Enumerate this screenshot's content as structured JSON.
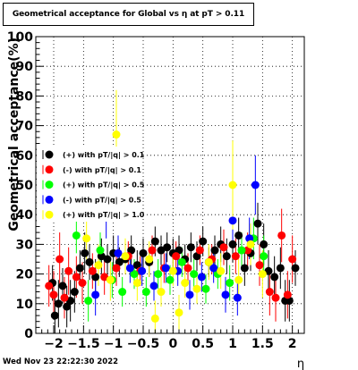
{
  "chart_data": {
    "type": "scatter",
    "title": "Geometrical acceptance for Global vs  η at pT > 0.11",
    "xlabel": "η",
    "ylabel": "Geometrical acceptance(%)",
    "xlim": [
      -2.3,
      2.2
    ],
    "ylim": [
      0,
      100
    ],
    "x_ticks": [
      -2,
      -1.5,
      -1,
      -0.5,
      0,
      0.5,
      1,
      1.5,
      2
    ],
    "x_tick_labels": [
      "−2",
      "−1.5",
      "−1",
      "−0.5",
      "0",
      "0.5",
      "1",
      "1.5",
      "2"
    ],
    "y_ticks": [
      0,
      10,
      20,
      30,
      40,
      50,
      60,
      70,
      80,
      90,
      100
    ],
    "y_tick_labels": [
      "0",
      "10",
      "20",
      "30",
      "40",
      "50",
      "60",
      "70",
      "80",
      "90",
      "100"
    ],
    "grid": true,
    "legend_position": "center-left",
    "timestamp": "Wed Nov 23 22:22:30 2022",
    "series": [
      {
        "name": "(+) with pT/|q| > 0.1",
        "color": "#000000",
        "points": [
          {
            "x": -2.02,
            "y": 17,
            "err": 6
          },
          {
            "x": -1.98,
            "y": 6,
            "err": 7
          },
          {
            "x": -1.92,
            "y": 10,
            "err": 8
          },
          {
            "x": -1.85,
            "y": 16,
            "err": 6
          },
          {
            "x": -1.78,
            "y": 9,
            "err": 7
          },
          {
            "x": -1.72,
            "y": 11,
            "err": 7
          },
          {
            "x": -1.65,
            "y": 14,
            "err": 7
          },
          {
            "x": -1.56,
            "y": 22,
            "err": 6
          },
          {
            "x": -1.48,
            "y": 27,
            "err": 7
          },
          {
            "x": -1.4,
            "y": 24,
            "err": 6
          },
          {
            "x": -1.3,
            "y": 19,
            "err": 6
          },
          {
            "x": -1.2,
            "y": 26,
            "err": 6
          },
          {
            "x": -1.1,
            "y": 25,
            "err": 5
          },
          {
            "x": -1.0,
            "y": 27,
            "err": 6
          },
          {
            "x": -0.9,
            "y": 24,
            "err": 5
          },
          {
            "x": -0.8,
            "y": 25,
            "err": 5
          },
          {
            "x": -0.7,
            "y": 28,
            "err": 5
          },
          {
            "x": -0.6,
            "y": 23,
            "err": 5
          },
          {
            "x": -0.5,
            "y": 27,
            "err": 5
          },
          {
            "x": -0.4,
            "y": 24,
            "err": 5
          },
          {
            "x": -0.3,
            "y": 31,
            "err": 5
          },
          {
            "x": -0.2,
            "y": 28,
            "err": 5
          },
          {
            "x": -0.1,
            "y": 29,
            "err": 5
          },
          {
            "x": 0.0,
            "y": 27,
            "err": 5
          },
          {
            "x": 0.1,
            "y": 28,
            "err": 5
          },
          {
            "x": 0.2,
            "y": 25,
            "err": 5
          },
          {
            "x": 0.3,
            "y": 29,
            "err": 5
          },
          {
            "x": 0.4,
            "y": 26,
            "err": 5
          },
          {
            "x": 0.5,
            "y": 31,
            "err": 5
          },
          {
            "x": 0.6,
            "y": 24,
            "err": 5
          },
          {
            "x": 0.7,
            "y": 28,
            "err": 5
          },
          {
            "x": 0.8,
            "y": 30,
            "err": 6
          },
          {
            "x": 0.9,
            "y": 26,
            "err": 6
          },
          {
            "x": 1.0,
            "y": 30,
            "err": 6
          },
          {
            "x": 1.1,
            "y": 33,
            "err": 6
          },
          {
            "x": 1.2,
            "y": 22,
            "err": 6
          },
          {
            "x": 1.3,
            "y": 27,
            "err": 6
          },
          {
            "x": 1.42,
            "y": 37,
            "err": 7
          },
          {
            "x": 1.52,
            "y": 30,
            "err": 7
          },
          {
            "x": 1.6,
            "y": 21,
            "err": 7
          },
          {
            "x": 1.7,
            "y": 19,
            "err": 7
          },
          {
            "x": 1.8,
            "y": 22,
            "err": 7
          },
          {
            "x": 1.88,
            "y": 11,
            "err": 7
          },
          {
            "x": 1.95,
            "y": 11,
            "err": 7
          },
          {
            "x": 2.05,
            "y": 22,
            "err": 6
          }
        ]
      },
      {
        "name": "(-) with pT/|q| > 0.1",
        "color": "#ff0000",
        "points": [
          {
            "x": -2.08,
            "y": 16,
            "err": 7
          },
          {
            "x": -2.0,
            "y": 13,
            "err": 8
          },
          {
            "x": -1.9,
            "y": 25,
            "err": 9
          },
          {
            "x": -1.82,
            "y": 12,
            "err": 7
          },
          {
            "x": -1.75,
            "y": 21,
            "err": 8
          },
          {
            "x": -1.62,
            "y": 19,
            "err": 7
          },
          {
            "x": -1.52,
            "y": 17,
            "err": 7
          },
          {
            "x": -1.35,
            "y": 21,
            "err": 6
          },
          {
            "x": -1.15,
            "y": 19,
            "err": 6
          },
          {
            "x": -0.95,
            "y": 22,
            "err": 6
          },
          {
            "x": -0.75,
            "y": 26,
            "err": 5
          },
          {
            "x": -0.55,
            "y": 21,
            "err": 5
          },
          {
            "x": -0.35,
            "y": 28,
            "err": 5
          },
          {
            "x": -0.15,
            "y": 22,
            "err": 5
          },
          {
            "x": 0.05,
            "y": 26,
            "err": 5
          },
          {
            "x": 0.25,
            "y": 22,
            "err": 5
          },
          {
            "x": 0.45,
            "y": 28,
            "err": 5
          },
          {
            "x": 0.65,
            "y": 25,
            "err": 5
          },
          {
            "x": 0.85,
            "y": 29,
            "err": 6
          },
          {
            "x": 1.05,
            "y": 26,
            "err": 6
          },
          {
            "x": 1.25,
            "y": 28,
            "err": 6
          },
          {
            "x": 1.45,
            "y": 23,
            "err": 7
          },
          {
            "x": 1.62,
            "y": 14,
            "err": 8
          },
          {
            "x": 1.72,
            "y": 12,
            "err": 8
          },
          {
            "x": 1.82,
            "y": 33,
            "err": 9
          },
          {
            "x": 1.92,
            "y": 13,
            "err": 8
          },
          {
            "x": 2.0,
            "y": 25,
            "err": 8
          }
        ]
      },
      {
        "name": "(+) with pT/|q| > 0.5",
        "color": "#00ff00",
        "points": [
          {
            "x": -1.62,
            "y": 33,
            "err": 6
          },
          {
            "x": -1.42,
            "y": 11,
            "err": 7
          },
          {
            "x": -1.22,
            "y": 28,
            "err": 6
          },
          {
            "x": -1.02,
            "y": 18,
            "err": 6
          },
          {
            "x": -0.85,
            "y": 14,
            "err": 5
          },
          {
            "x": -0.65,
            "y": 20,
            "err": 5
          },
          {
            "x": -0.45,
            "y": 14,
            "err": 5
          },
          {
            "x": -0.25,
            "y": 20,
            "err": 5
          },
          {
            "x": -0.05,
            "y": 18,
            "err": 5
          },
          {
            "x": 0.15,
            "y": 24,
            "err": 5
          },
          {
            "x": 0.35,
            "y": 20,
            "err": 5
          },
          {
            "x": 0.55,
            "y": 15,
            "err": 5
          },
          {
            "x": 0.75,
            "y": 20,
            "err": 5
          },
          {
            "x": 0.95,
            "y": 17,
            "err": 6
          },
          {
            "x": 1.15,
            "y": 28,
            "err": 6
          },
          {
            "x": 1.35,
            "y": 32,
            "err": 7
          },
          {
            "x": 1.52,
            "y": 26,
            "err": 7
          }
        ]
      },
      {
        "name": "(-) with pT/|q| > 0.5",
        "color": "#0000ff",
        "points": [
          {
            "x": -1.3,
            "y": 13,
            "err": 7
          },
          {
            "x": -1.12,
            "y": 40,
            "err": 8
          },
          {
            "x": -0.92,
            "y": 27,
            "err": 6
          },
          {
            "x": -0.72,
            "y": 22,
            "err": 5
          },
          {
            "x": -0.52,
            "y": 21,
            "err": 5
          },
          {
            "x": -0.32,
            "y": 16,
            "err": 5
          },
          {
            "x": -0.12,
            "y": 22,
            "err": 5
          },
          {
            "x": 0.08,
            "y": 21,
            "err": 5
          },
          {
            "x": 0.28,
            "y": 13,
            "err": 5
          },
          {
            "x": 0.48,
            "y": 19,
            "err": 5
          },
          {
            "x": 0.68,
            "y": 22,
            "err": 5
          },
          {
            "x": 0.88,
            "y": 13,
            "err": 6
          },
          {
            "x": 1.0,
            "y": 38,
            "err": 7
          },
          {
            "x": 1.08,
            "y": 12,
            "err": 6
          },
          {
            "x": 1.28,
            "y": 32,
            "err": 7
          },
          {
            "x": 1.38,
            "y": 50,
            "err": 10
          }
        ]
      },
      {
        "name": "(+) with pT/|q| > 1.0",
        "color": "#ffff00",
        "points": [
          {
            "x": -1.45,
            "y": 32,
            "err": 7
          },
          {
            "x": -1.25,
            "y": 23,
            "err": 7
          },
          {
            "x": -1.05,
            "y": 18,
            "err": 7
          },
          {
            "x": -0.95,
            "y": 67,
            "err": 15
          },
          {
            "x": -0.8,
            "y": 26,
            "err": 6
          },
          {
            "x": -0.6,
            "y": 17,
            "err": 6
          },
          {
            "x": -0.4,
            "y": 25,
            "err": 6
          },
          {
            "x": -0.3,
            "y": 5,
            "err": 6
          },
          {
            "x": -0.2,
            "y": 14,
            "err": 5
          },
          {
            "x": 0.0,
            "y": 21,
            "err": 5
          },
          {
            "x": 0.1,
            "y": 7,
            "err": 6
          },
          {
            "x": 0.2,
            "y": 17,
            "err": 5
          },
          {
            "x": 0.4,
            "y": 15,
            "err": 5
          },
          {
            "x": 0.6,
            "y": 24,
            "err": 6
          },
          {
            "x": 0.8,
            "y": 21,
            "err": 6
          },
          {
            "x": 1.0,
            "y": 50,
            "err": 15
          },
          {
            "x": 1.1,
            "y": 18,
            "err": 7
          },
          {
            "x": 1.3,
            "y": 30,
            "err": 7
          },
          {
            "x": 1.5,
            "y": 20,
            "err": 8
          }
        ]
      }
    ]
  }
}
